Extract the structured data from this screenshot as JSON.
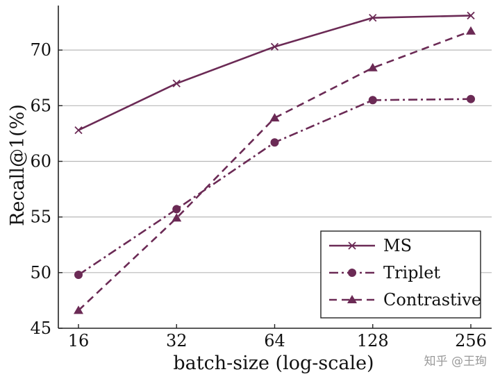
{
  "colors": {
    "series": "#6b2a55",
    "grid": "#b8b8b8",
    "axis": "#222222",
    "background": "#ffffff"
  },
  "chart_data": {
    "type": "line",
    "title": "",
    "xlabel": "batch-size (log-scale)",
    "ylabel": "Recall@1(%)",
    "x_scale": "log2",
    "categories": [
      "16",
      "32",
      "64",
      "128",
      "256"
    ],
    "x": [
      16,
      32,
      64,
      128,
      256
    ],
    "ylim": [
      45,
      74
    ],
    "yticks": [
      45,
      50,
      55,
      60,
      65,
      70
    ],
    "grid": "horizontal",
    "legend_position": "lower-right",
    "series": [
      {
        "name": "MS",
        "marker": "x",
        "line_style": "solid",
        "values": [
          62.8,
          67.0,
          70.3,
          72.9,
          73.1
        ]
      },
      {
        "name": "Triplet",
        "marker": "circle",
        "line_style": "dash-dot",
        "values": [
          49.8,
          55.7,
          61.7,
          65.5,
          65.6
        ]
      },
      {
        "name": "Contrastive",
        "marker": "triangle",
        "line_style": "dashed",
        "values": [
          46.6,
          54.9,
          63.9,
          68.4,
          71.7
        ]
      }
    ]
  },
  "watermark": "知乎 @王珣"
}
